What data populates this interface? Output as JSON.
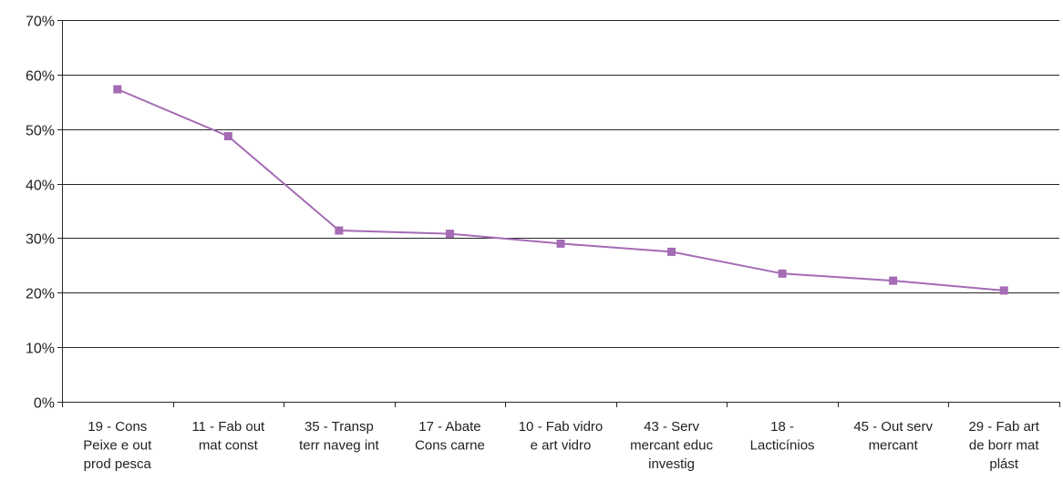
{
  "chart_data": {
    "type": "line",
    "categories": [
      [
        "19 - Cons",
        "Peixe e out",
        "prod pesca"
      ],
      [
        "11 - Fab out",
        "mat const"
      ],
      [
        "35 - Transp",
        "terr naveg int"
      ],
      [
        "17 - Abate",
        "Cons carne"
      ],
      [
        "10 - Fab vidro",
        "e art vidro"
      ],
      [
        "43 -  Serv",
        "mercant educ",
        "investig"
      ],
      [
        "18 -",
        "Lacticínios"
      ],
      [
        "45 - Out serv",
        "mercant"
      ],
      [
        "29 - Fab art",
        "de borr mat",
        "plást"
      ]
    ],
    "series": [
      {
        "values": [
          0.573,
          0.487,
          0.314,
          0.308,
          0.29,
          0.275,
          0.235,
          0.222,
          0.204
        ]
      }
    ],
    "ylim": [
      0,
      0.7
    ],
    "yticks": [
      0,
      0.1,
      0.2,
      0.3,
      0.4,
      0.5,
      0.6,
      0.7
    ],
    "ytick_labels": [
      "0%",
      "10%",
      "20%",
      "30%",
      "40%",
      "50%",
      "60%",
      "70%"
    ],
    "grid": true,
    "series_color": "#a56bb4",
    "marker": "square"
  }
}
